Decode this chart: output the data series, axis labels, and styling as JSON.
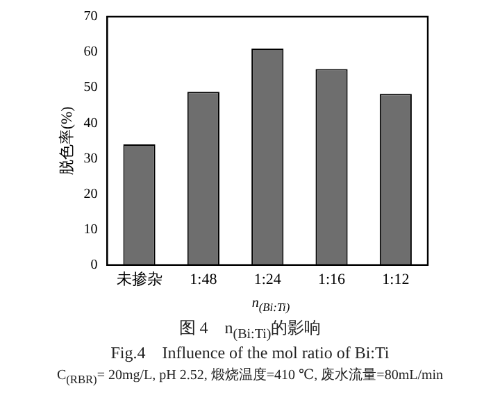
{
  "chart_data": {
    "type": "bar",
    "categories": [
      "未掺杂",
      "1:48",
      "1:24",
      "1:16",
      "1:12"
    ],
    "values": [
      34,
      48.8,
      61,
      55.2,
      48.2
    ],
    "color": "#6e6e6e",
    "ylabel": "脱色率(%)",
    "xlabel": "n$_{(Bi:Ti)}$",
    "ylim": [
      0,
      70
    ],
    "yticks": [
      0,
      10,
      20,
      30,
      40,
      50,
      60,
      70
    ],
    "grid": false,
    "legend": false,
    "annotations": [
      "图 4　n$_{(Bi:Ti)}$的影响",
      "Fig.4　Influence of the mol ratio of Bi:Ti",
      "C$_{(RBR)}$= 20mg/L, pH 2.52, 煅烧温度=410 ℃, 废水流量=80mL/min"
    ]
  }
}
